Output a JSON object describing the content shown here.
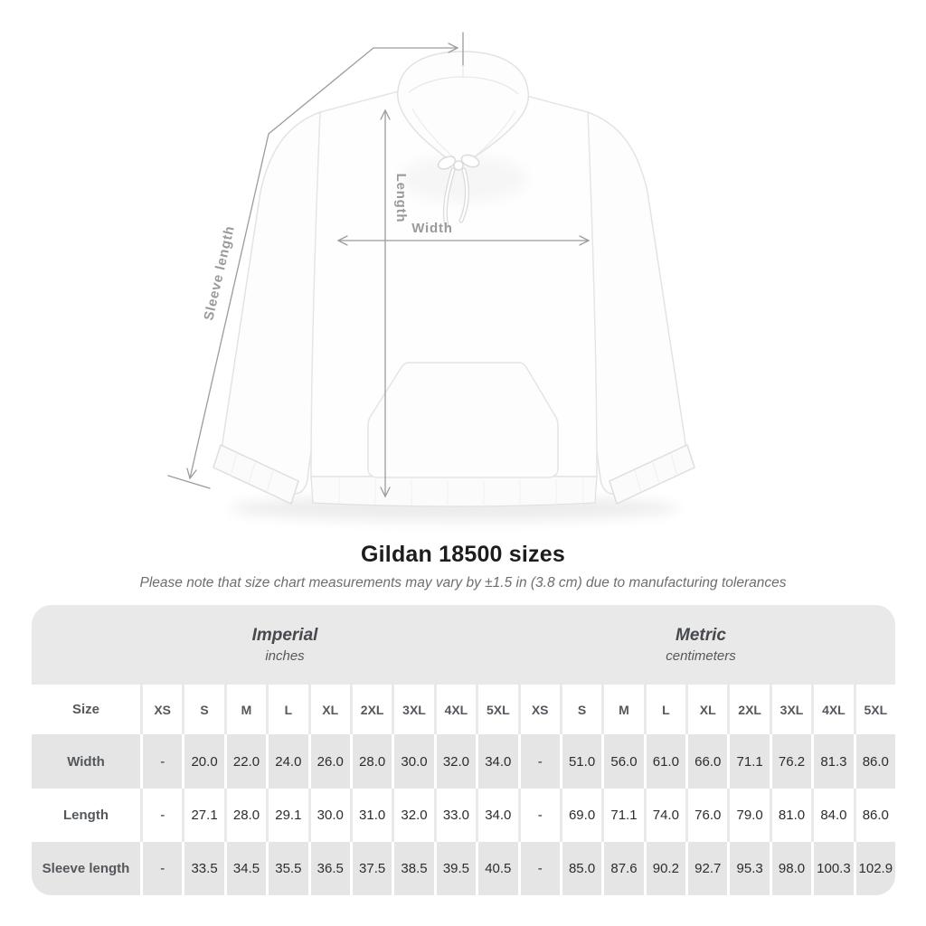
{
  "title": "Gildan 18500 sizes",
  "subtitle": "Please note that size chart measurements may vary by ±1.5 in (3.8 cm) due to manufacturing tolerances",
  "diagram": {
    "width_label": "Width",
    "length_label": "Length",
    "sleeve_label": "Sleeve length",
    "line_color": "#9c9c9c",
    "label_color": "#9a9a9a"
  },
  "chart_data": {
    "type": "table",
    "title": "Gildan 18500 sizes",
    "note": "Please note that size chart measurements may vary by ±1.5 in (3.8 cm) due to manufacturing tolerances",
    "unit_groups": [
      {
        "label": "Imperial",
        "unit": "inches"
      },
      {
        "label": "Metric",
        "unit": "centimeters"
      }
    ],
    "size_column_header": "Size",
    "sizes": [
      "XS",
      "S",
      "M",
      "L",
      "XL",
      "2XL",
      "3XL",
      "4XL",
      "5XL"
    ],
    "rows": [
      {
        "label": "Width",
        "imperial": [
          "-",
          "20.0",
          "22.0",
          "24.0",
          "26.0",
          "28.0",
          "30.0",
          "32.0",
          "34.0"
        ],
        "metric": [
          "-",
          "51.0",
          "56.0",
          "61.0",
          "66.0",
          "71.1",
          "76.2",
          "81.3",
          "86.0"
        ]
      },
      {
        "label": "Length",
        "imperial": [
          "-",
          "27.1",
          "28.0",
          "29.1",
          "30.0",
          "31.0",
          "32.0",
          "33.0",
          "34.0"
        ],
        "metric": [
          "-",
          "69.0",
          "71.1",
          "74.0",
          "76.0",
          "79.0",
          "81.0",
          "84.0",
          "86.0"
        ]
      },
      {
        "label": "Sleeve length",
        "imperial": [
          "-",
          "33.5",
          "34.5",
          "35.5",
          "36.5",
          "37.5",
          "38.5",
          "39.5",
          "40.5"
        ],
        "metric": [
          "-",
          "85.0",
          "87.6",
          "90.2",
          "92.7",
          "95.3",
          "98.0",
          "100.3",
          "102.9"
        ]
      }
    ]
  },
  "colors": {
    "card_bg": "#eae9e9",
    "stripe_bg": "#e6e5e5",
    "header_text": "#54585d",
    "value_text": "#2d2d2d",
    "title_text": "#1d1d1d",
    "subtitle_text": "#6e6e6e"
  }
}
